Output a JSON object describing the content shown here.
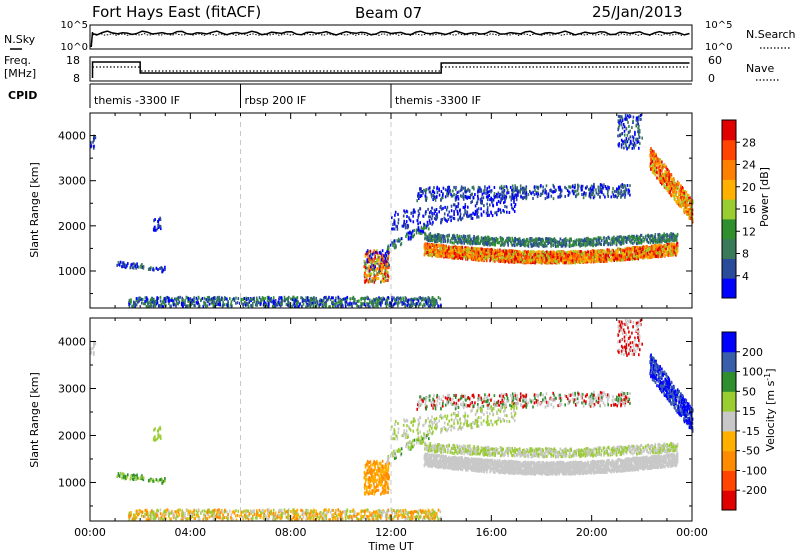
{
  "header": {
    "station": "Fort Hays East (fitACF)",
    "beam": "Beam 07",
    "date": "25/Jan/2013"
  },
  "panel_labels": {
    "nsky": "N.Sky",
    "nsearch": "N.Search",
    "freq_line1": "Freq.",
    "freq_line2": "[MHz]",
    "nave": "Nave",
    "cpid": "CPID"
  },
  "strip_ticks": {
    "noise_left": [
      "10^5",
      "10^0"
    ],
    "noise_right": [
      "10^5",
      "10^0"
    ],
    "freq_left": [
      "18",
      "8"
    ],
    "nave_right": [
      "60",
      "0"
    ]
  },
  "cpid_segments": [
    {
      "label": "themis -3300 IF",
      "start_h": 0,
      "end_h": 6
    },
    {
      "label": "rbsp 200 IF",
      "start_h": 6,
      "end_h": 12
    },
    {
      "label": "themis -3300 IF",
      "start_h": 12,
      "end_h": 24
    }
  ],
  "colors": {
    "power": [
      "#0000ff",
      "#2a4a9a",
      "#3a7a5a",
      "#2f8f2f",
      "#9acd32",
      "#ffb000",
      "#ff7f00",
      "#ff4500",
      "#e00000"
    ],
    "velocity": [
      "#e00000",
      "#ff4500",
      "#ff8c00",
      "#ffb000",
      "#c8c8c8",
      "#9acd32",
      "#2f8f2f",
      "#3a5faa",
      "#0000ff"
    ]
  },
  "chart_data": [
    {
      "type": "heatmap",
      "title": "",
      "xlabel": "Time UT",
      "ylabel": "Slant Range [km]",
      "xlim": [
        0,
        24
      ],
      "ylim": [
        180,
        4500
      ],
      "x_ticks": [
        "00:00",
        "04:00",
        "08:00",
        "12:00",
        "16:00",
        "20:00",
        "00:00"
      ],
      "y_ticks": [
        1000,
        2000,
        3000,
        4000
      ],
      "colorbar": {
        "label": "Power [dB]",
        "ticks": [
          4,
          8,
          12,
          16,
          20,
          24,
          28
        ]
      }
    },
    {
      "type": "heatmap",
      "title": "",
      "xlabel": "Time UT",
      "ylabel": "Slant Range [km]",
      "xlim": [
        0,
        24
      ],
      "ylim": [
        180,
        4500
      ],
      "x_ticks": [
        "00:00",
        "04:00",
        "08:00",
        "12:00",
        "16:00",
        "20:00",
        "00:00"
      ],
      "y_ticks": [
        1000,
        2000,
        3000,
        4000
      ],
      "colorbar": {
        "label": "Velocity [m s^-1]",
        "ticks": [
          200,
          100,
          50,
          15,
          -15,
          -50,
          -100,
          -200
        ]
      }
    }
  ]
}
